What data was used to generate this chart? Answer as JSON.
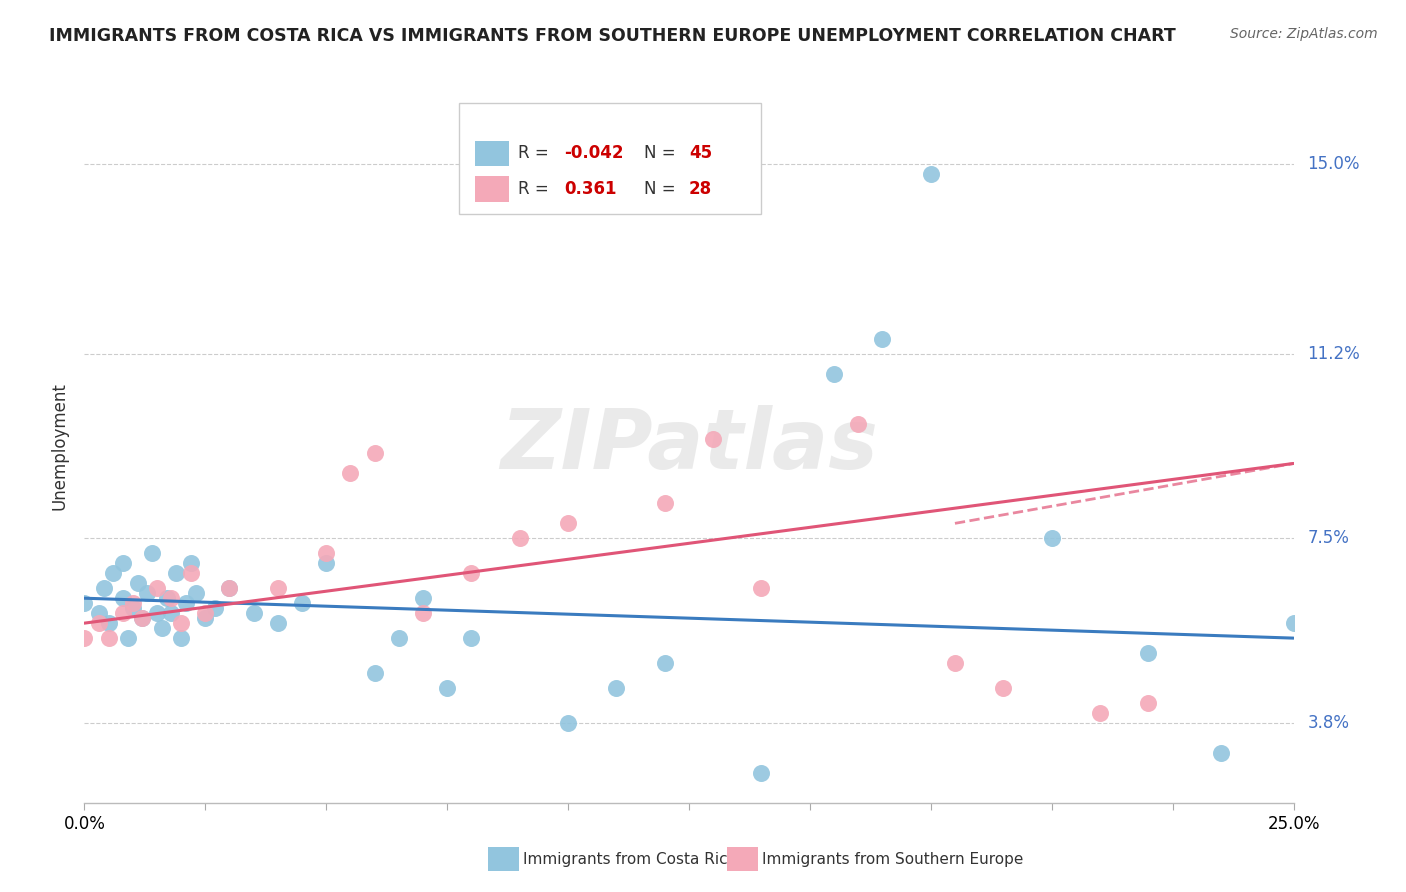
{
  "title": "IMMIGRANTS FROM COSTA RICA VS IMMIGRANTS FROM SOUTHERN EUROPE UNEMPLOYMENT CORRELATION CHART",
  "source": "Source: ZipAtlas.com",
  "ylabel": "Unemployment",
  "yticks": [
    3.8,
    7.5,
    11.2,
    15.0
  ],
  "ytick_labels": [
    "3.8%",
    "7.5%",
    "11.2%",
    "15.0%"
  ],
  "xmin": 0.0,
  "xmax": 0.25,
  "ymin": 2.2,
  "ymax": 16.5,
  "watermark": "ZIPatlas",
  "costa_rica_color": "#92c5de",
  "southern_europe_color": "#f4a9b8",
  "costa_rica_line_color": "#3a7bbf",
  "southern_europe_line_color": "#e05577",
  "costa_rica_R": -0.042,
  "costa_rica_N": 45,
  "southern_europe_R": 0.361,
  "southern_europe_N": 28,
  "legend_cr_r": "-0.042",
  "legend_cr_n": "45",
  "legend_se_r": "0.361",
  "legend_se_n": "28",
  "costa_rica_x": [
    0.0,
    0.003,
    0.004,
    0.005,
    0.006,
    0.008,
    0.008,
    0.009,
    0.01,
    0.011,
    0.012,
    0.013,
    0.014,
    0.015,
    0.016,
    0.017,
    0.018,
    0.019,
    0.02,
    0.021,
    0.022,
    0.023,
    0.025,
    0.027,
    0.03,
    0.035,
    0.04,
    0.045,
    0.05,
    0.06,
    0.065,
    0.07,
    0.075,
    0.08,
    0.1,
    0.11,
    0.12,
    0.14,
    0.155,
    0.165,
    0.175,
    0.2,
    0.22,
    0.235,
    0.25
  ],
  "costa_rica_y": [
    6.2,
    6.0,
    6.5,
    5.8,
    6.8,
    6.3,
    7.0,
    5.5,
    6.1,
    6.6,
    5.9,
    6.4,
    7.2,
    6.0,
    5.7,
    6.3,
    6.0,
    6.8,
    5.5,
    6.2,
    7.0,
    6.4,
    5.9,
    6.1,
    6.5,
    6.0,
    5.8,
    6.2,
    7.0,
    4.8,
    5.5,
    6.3,
    4.5,
    5.5,
    3.8,
    4.5,
    5.0,
    2.8,
    10.8,
    11.5,
    14.8,
    7.5,
    5.2,
    3.2,
    5.8
  ],
  "southern_europe_x": [
    0.0,
    0.003,
    0.005,
    0.008,
    0.01,
    0.012,
    0.015,
    0.018,
    0.02,
    0.022,
    0.025,
    0.03,
    0.04,
    0.05,
    0.055,
    0.06,
    0.07,
    0.08,
    0.09,
    0.1,
    0.12,
    0.13,
    0.14,
    0.16,
    0.18,
    0.19,
    0.21,
    0.22
  ],
  "southern_europe_y": [
    5.5,
    5.8,
    5.5,
    6.0,
    6.2,
    5.9,
    6.5,
    6.3,
    5.8,
    6.8,
    6.0,
    6.5,
    6.5,
    7.2,
    8.8,
    9.2,
    6.0,
    6.8,
    7.5,
    7.8,
    8.2,
    9.5,
    6.5,
    9.8,
    5.0,
    4.5,
    4.0,
    4.2
  ]
}
